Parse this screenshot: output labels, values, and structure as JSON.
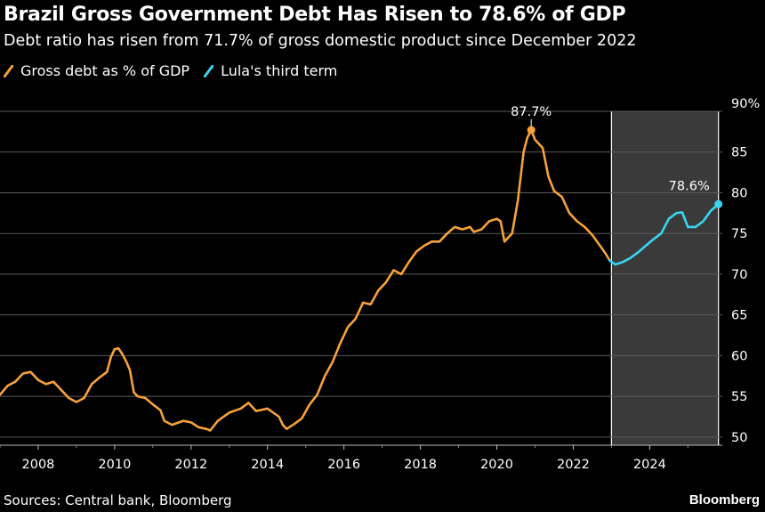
{
  "header": {
    "title": "Brazil Gross Government Debt Has Risen to 78.6% of GDP",
    "subtitle": "Debt ratio has risen from 71.7% of gross domestic product since December 2022"
  },
  "legend": [
    {
      "label": "Gross debt as % of GDP",
      "color": "#f6a23a"
    },
    {
      "label": "Lula's third term",
      "color": "#37d6f0"
    }
  ],
  "footer": {
    "source": "Sources: Central bank, Bloomberg",
    "brand": "Bloomberg"
  },
  "chart_data": {
    "type": "line",
    "ylim": [
      49,
      90
    ],
    "xlim": [
      2007.0,
      2025.9
    ],
    "y_ticks": [
      50,
      55,
      60,
      65,
      70,
      75,
      80,
      85,
      90
    ],
    "y_tick_labels": [
      "50",
      "55",
      "60",
      "65",
      "70",
      "75",
      "80",
      "85",
      "90%"
    ],
    "x_ticks": [
      2008,
      2010,
      2012,
      2014,
      2016,
      2018,
      2020,
      2022,
      2024
    ],
    "x_tick_labels": [
      "2008",
      "2010",
      "2012",
      "2014",
      "2016",
      "2018",
      "2020",
      "2022",
      "2024"
    ],
    "grid": true,
    "shaded_region": {
      "from": 2023.0,
      "to": 2025.8,
      "color": "#3a3a3a"
    },
    "annotations": [
      {
        "label": "87.7%",
        "x": 2020.9,
        "y": 87.7,
        "color": "#f6a23a"
      },
      {
        "label": "78.6%",
        "x": 2025.8,
        "y": 78.6,
        "color": "#37d6f0"
      }
    ],
    "series": [
      {
        "name": "Gross debt as % of GDP",
        "color": "#f6a23a",
        "points": [
          [
            2007.0,
            55.2
          ],
          [
            2007.2,
            56.3
          ],
          [
            2007.4,
            56.8
          ],
          [
            2007.6,
            57.8
          ],
          [
            2007.8,
            58.0
          ],
          [
            2008.0,
            57.0
          ],
          [
            2008.2,
            56.5
          ],
          [
            2008.4,
            56.8
          ],
          [
            2008.6,
            55.8
          ],
          [
            2008.8,
            54.8
          ],
          [
            2009.0,
            54.3
          ],
          [
            2009.2,
            54.8
          ],
          [
            2009.4,
            56.5
          ],
          [
            2009.6,
            57.3
          ],
          [
            2009.8,
            58.0
          ],
          [
            2009.9,
            59.8
          ],
          [
            2010.0,
            60.8
          ],
          [
            2010.1,
            60.9
          ],
          [
            2010.2,
            60.2
          ],
          [
            2010.3,
            59.3
          ],
          [
            2010.4,
            58.2
          ],
          [
            2010.5,
            55.5
          ],
          [
            2010.6,
            55.0
          ],
          [
            2010.8,
            54.8
          ],
          [
            2011.0,
            54.0
          ],
          [
            2011.2,
            53.3
          ],
          [
            2011.3,
            52.0
          ],
          [
            2011.5,
            51.5
          ],
          [
            2011.8,
            52.0
          ],
          [
            2012.0,
            51.8
          ],
          [
            2012.2,
            51.2
          ],
          [
            2012.4,
            51.0
          ],
          [
            2012.5,
            50.8
          ],
          [
            2012.7,
            52.0
          ],
          [
            2013.0,
            53.0
          ],
          [
            2013.3,
            53.5
          ],
          [
            2013.5,
            54.2
          ],
          [
            2013.7,
            53.2
          ],
          [
            2014.0,
            53.5
          ],
          [
            2014.3,
            52.5
          ],
          [
            2014.4,
            51.5
          ],
          [
            2014.5,
            51.0
          ],
          [
            2014.7,
            51.6
          ],
          [
            2014.9,
            52.3
          ],
          [
            2015.1,
            54.0
          ],
          [
            2015.3,
            55.2
          ],
          [
            2015.5,
            57.5
          ],
          [
            2015.7,
            59.2
          ],
          [
            2015.9,
            61.5
          ],
          [
            2016.1,
            63.5
          ],
          [
            2016.3,
            64.5
          ],
          [
            2016.5,
            66.5
          ],
          [
            2016.7,
            66.3
          ],
          [
            2016.9,
            68.0
          ],
          [
            2017.1,
            69.0
          ],
          [
            2017.3,
            70.5
          ],
          [
            2017.5,
            70.0
          ],
          [
            2017.7,
            71.5
          ],
          [
            2017.9,
            72.8
          ],
          [
            2018.1,
            73.5
          ],
          [
            2018.3,
            74.0
          ],
          [
            2018.5,
            74.0
          ],
          [
            2018.7,
            75.0
          ],
          [
            2018.9,
            75.8
          ],
          [
            2019.1,
            75.5
          ],
          [
            2019.3,
            75.8
          ],
          [
            2019.4,
            75.2
          ],
          [
            2019.6,
            75.5
          ],
          [
            2019.8,
            76.5
          ],
          [
            2020.0,
            76.8
          ],
          [
            2020.1,
            76.5
          ],
          [
            2020.2,
            74.0
          ],
          [
            2020.4,
            75.0
          ],
          [
            2020.55,
            79.0
          ],
          [
            2020.7,
            85.0
          ],
          [
            2020.8,
            86.8
          ],
          [
            2020.9,
            87.7
          ],
          [
            2021.0,
            86.5
          ],
          [
            2021.2,
            85.5
          ],
          [
            2021.35,
            82.0
          ],
          [
            2021.5,
            80.2
          ],
          [
            2021.7,
            79.5
          ],
          [
            2021.9,
            77.5
          ],
          [
            2022.1,
            76.5
          ],
          [
            2022.3,
            75.8
          ],
          [
            2022.5,
            74.8
          ],
          [
            2022.7,
            73.5
          ],
          [
            2022.85,
            72.5
          ],
          [
            2022.95,
            71.7
          ]
        ]
      },
      {
        "name": "Lula's third term",
        "color": "#37d6f0",
        "points": [
          [
            2022.95,
            71.7
          ],
          [
            2023.1,
            71.2
          ],
          [
            2023.3,
            71.5
          ],
          [
            2023.5,
            72.0
          ],
          [
            2023.7,
            72.7
          ],
          [
            2023.9,
            73.5
          ],
          [
            2024.1,
            74.3
          ],
          [
            2024.3,
            75.0
          ],
          [
            2024.5,
            76.8
          ],
          [
            2024.7,
            77.5
          ],
          [
            2024.85,
            77.6
          ],
          [
            2025.0,
            75.8
          ],
          [
            2025.2,
            75.8
          ],
          [
            2025.4,
            76.5
          ],
          [
            2025.6,
            77.8
          ],
          [
            2025.8,
            78.6
          ]
        ]
      }
    ]
  }
}
